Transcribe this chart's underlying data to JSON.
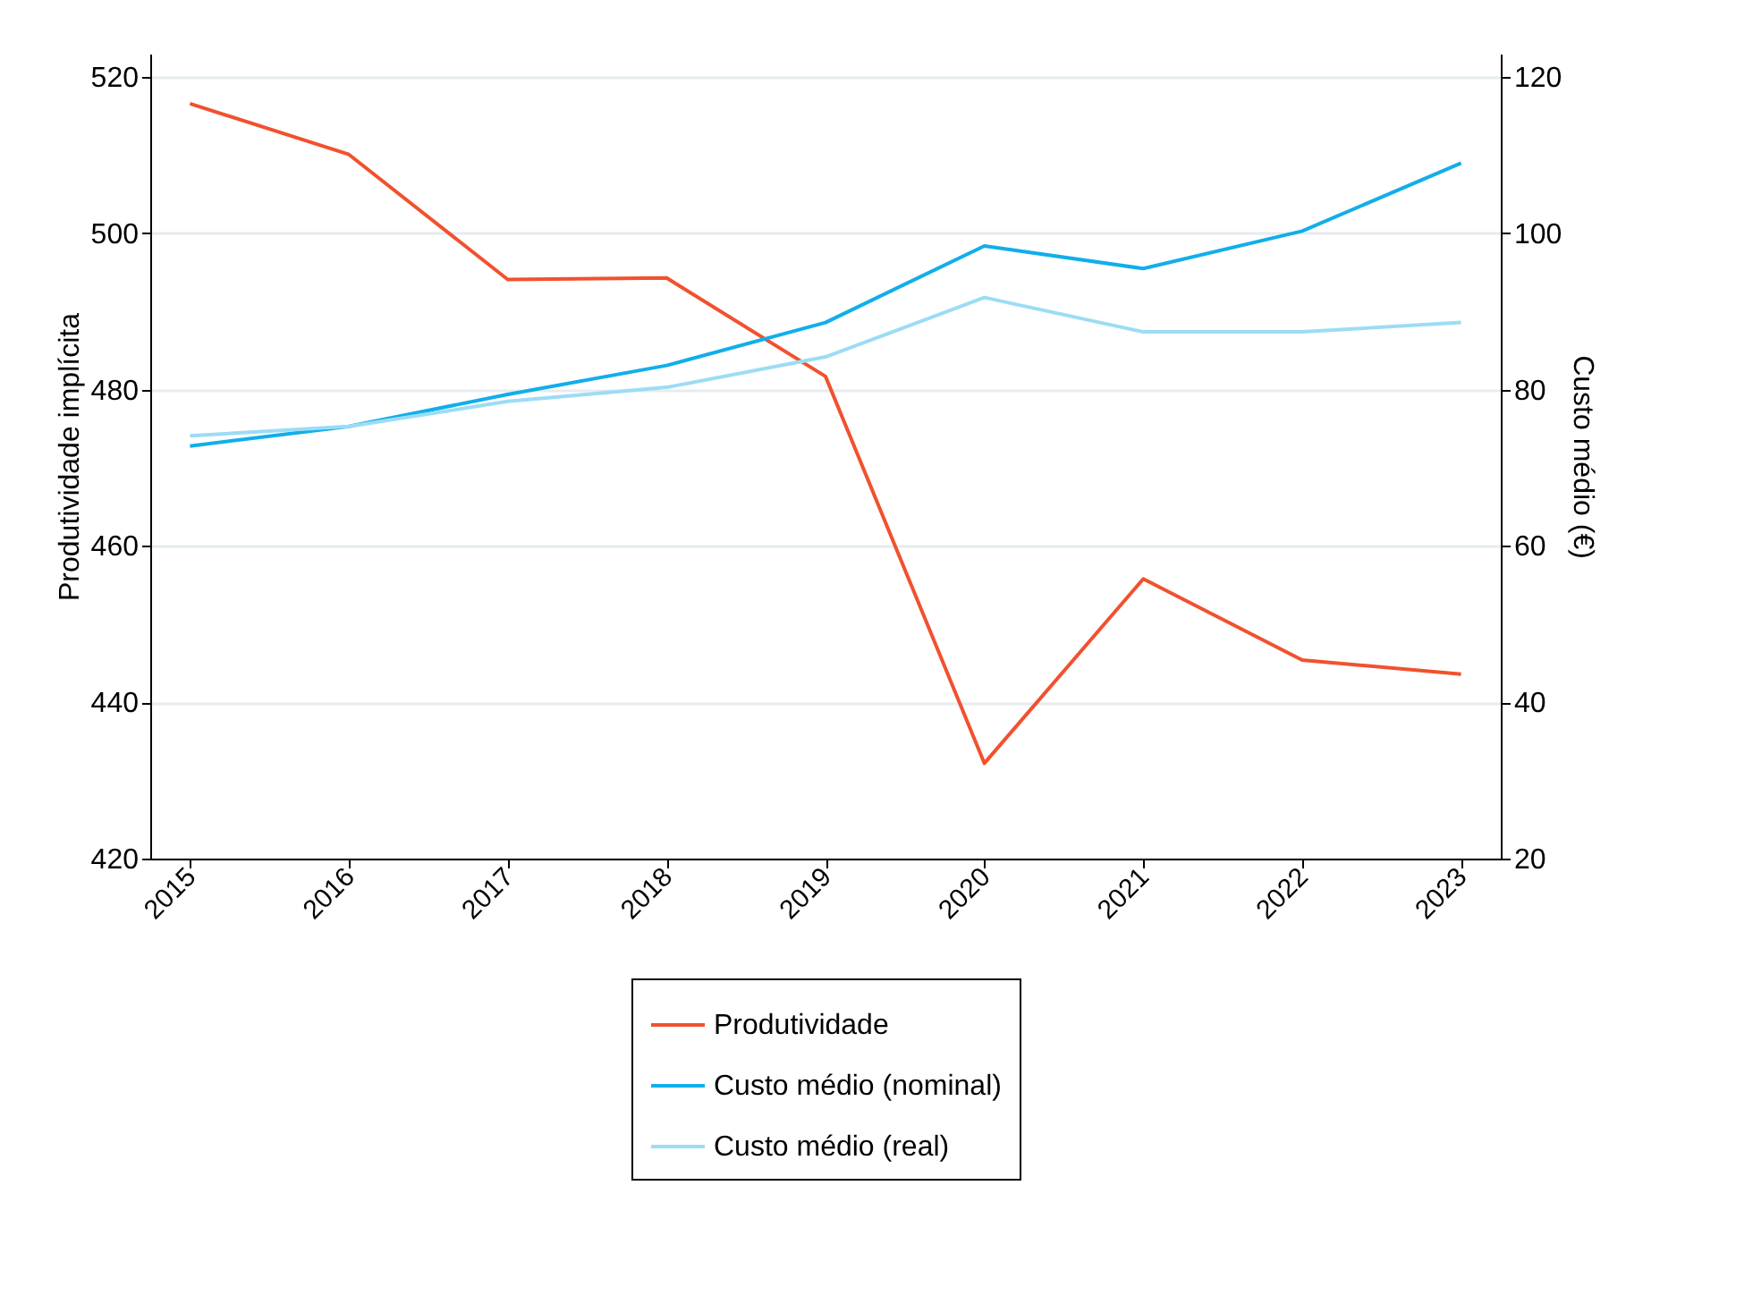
{
  "chart_data": {
    "type": "line",
    "categories": [
      "2015",
      "2016",
      "2017",
      "2018",
      "2019",
      "2020",
      "2021",
      "2022",
      "2023"
    ],
    "ylabel": "Produtividade implícita",
    "y2label": "Custo médio  (€)",
    "ylim": [
      420,
      523
    ],
    "yticks": [
      420,
      440,
      460,
      480,
      500,
      520
    ],
    "y2lim": [
      20,
      123
    ],
    "y2ticks": [
      20,
      40,
      60,
      80,
      100,
      120
    ],
    "grid": "y",
    "legend": "bottom",
    "series": [
      {
        "name": "Produtividade",
        "color": "#f1512f",
        "values": [
          516.6,
          510.1,
          494.1,
          494.3,
          481.7,
          432.2,
          455.8,
          445.4,
          443.6
        ]
      },
      {
        "name": "Custo médio (nominal)",
        "color": "#11aeea",
        "axis": "y2",
        "values": [
          72.8,
          75.3,
          79.4,
          83.1,
          88.6,
          98.4,
          95.5,
          100.3,
          109.0
        ]
      },
      {
        "name": "Custo médio (real)",
        "color": "#9cdcf5",
        "axis": "y2",
        "values": [
          74.1,
          75.3,
          78.5,
          80.3,
          84.2,
          91.8,
          87.4,
          87.4,
          88.6
        ]
      }
    ]
  }
}
